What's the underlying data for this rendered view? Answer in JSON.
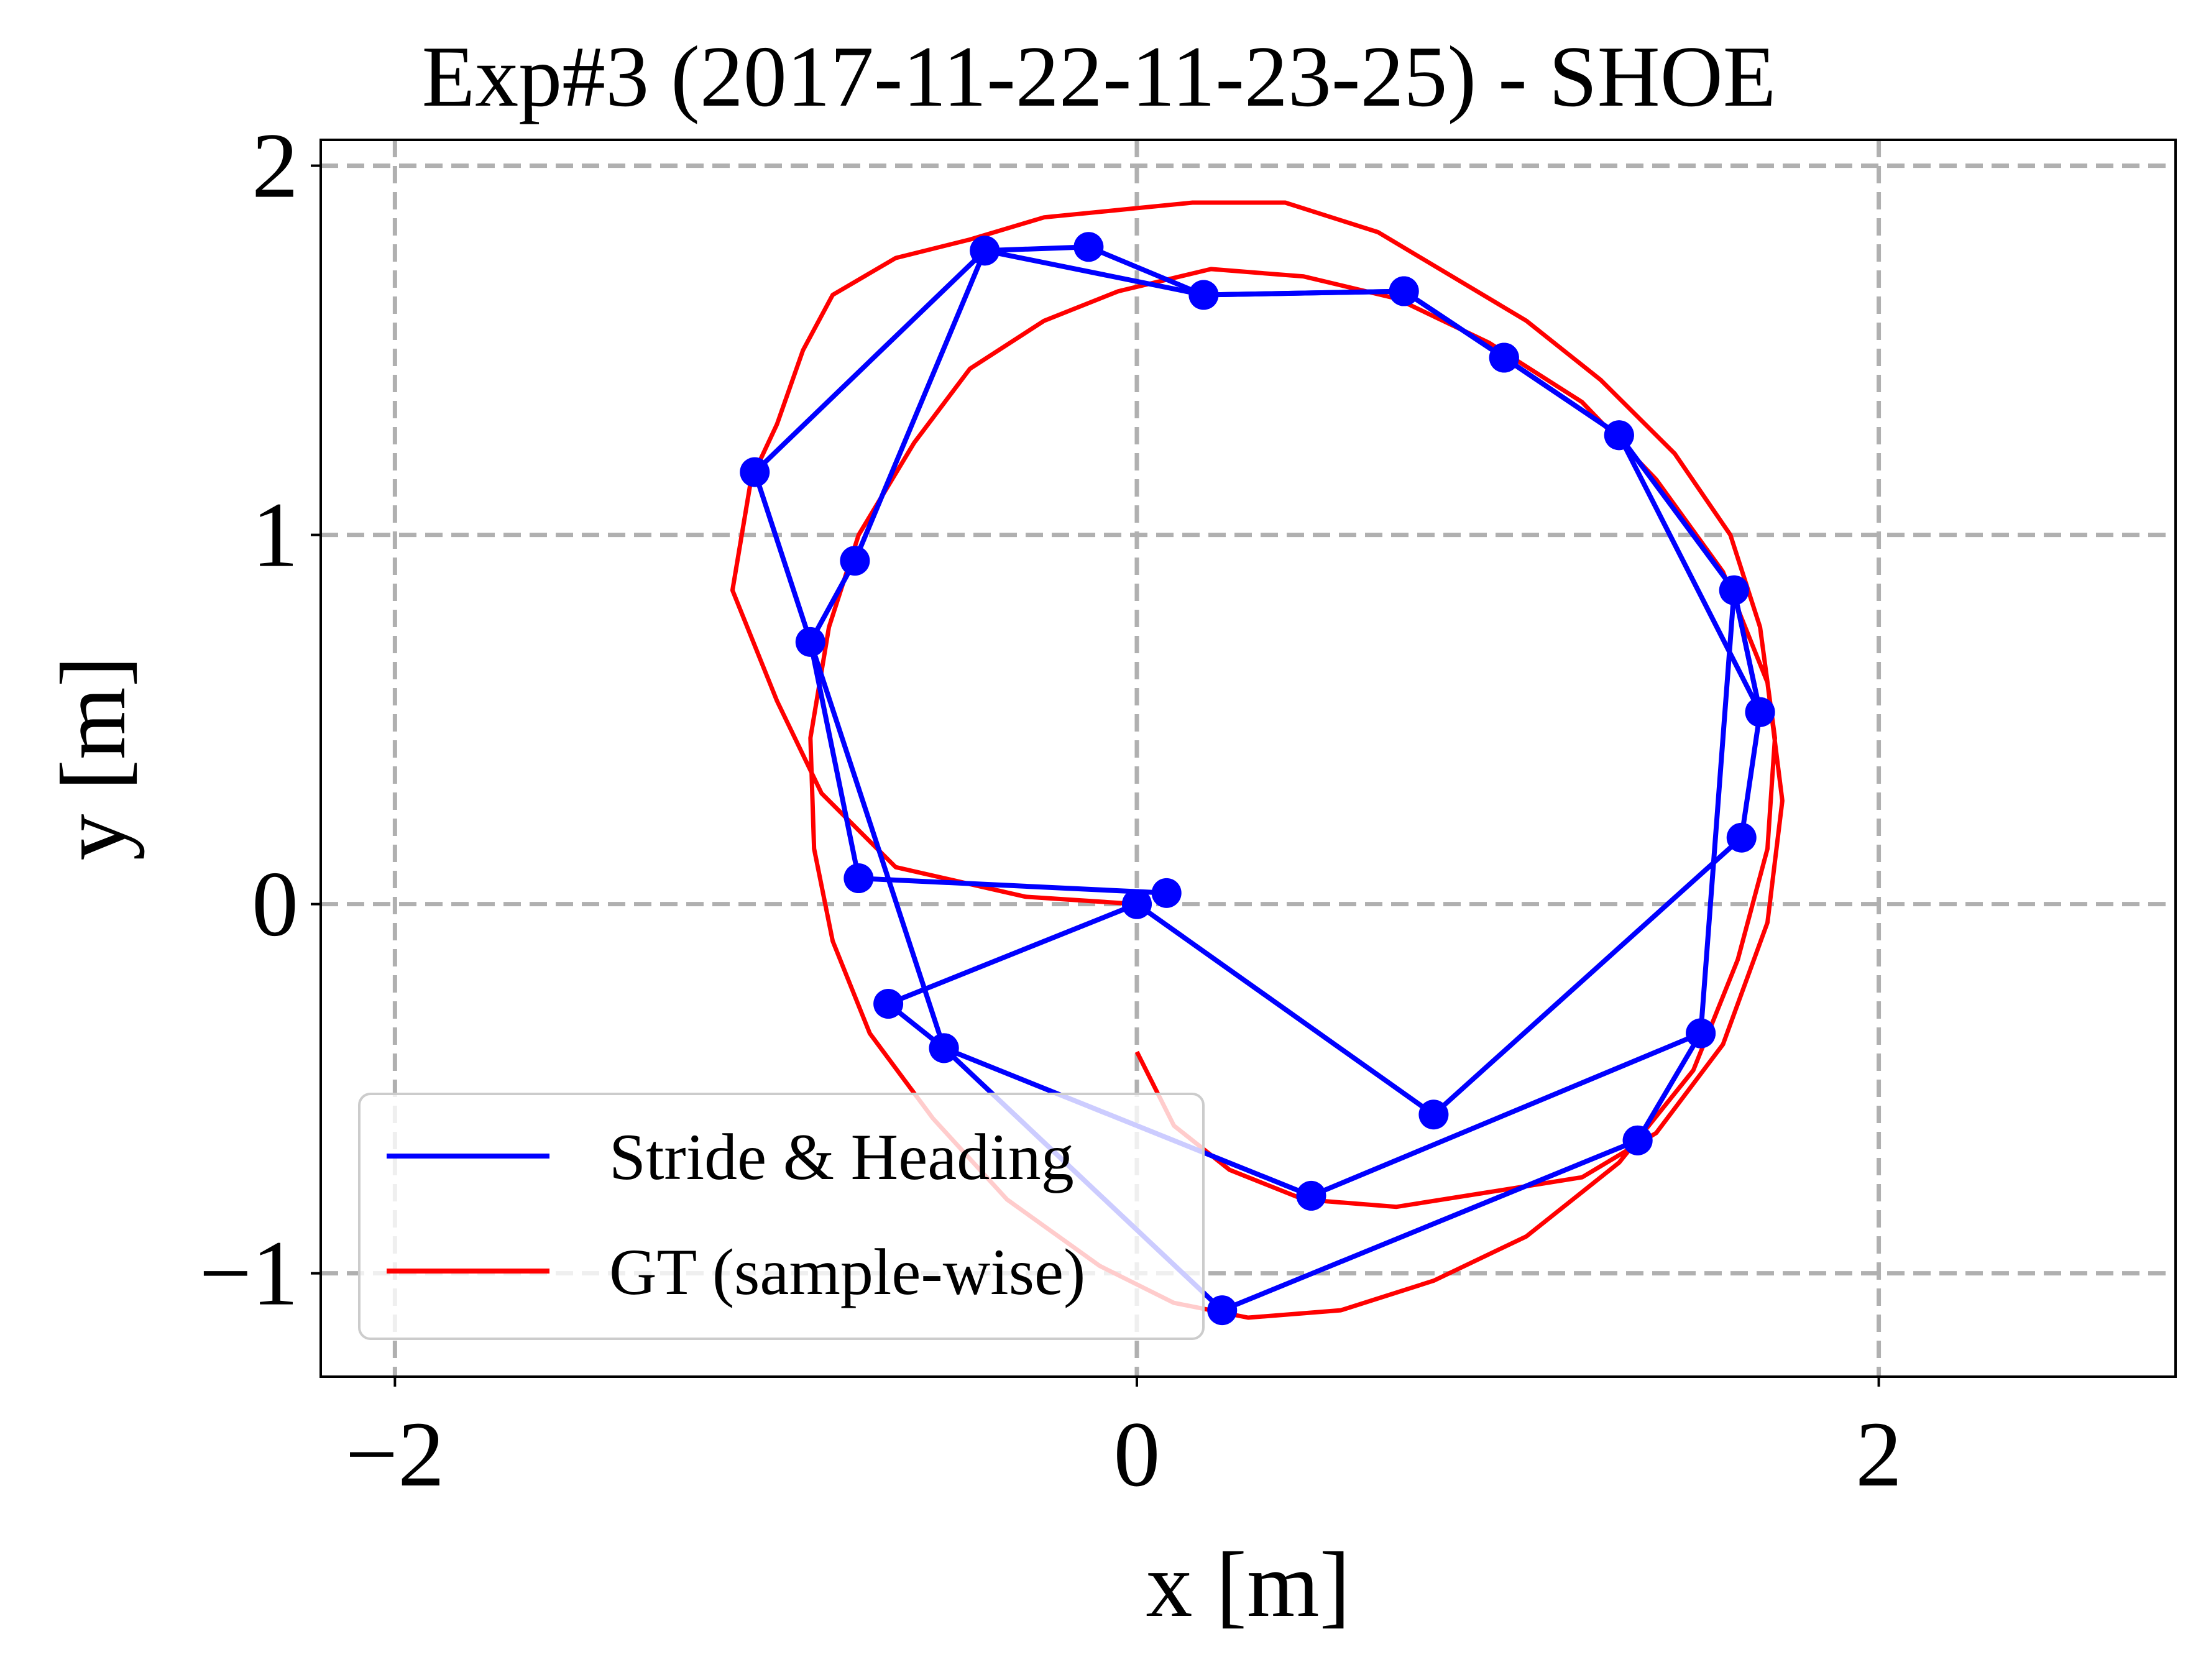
{
  "chart_data": {
    "type": "line",
    "title": "Exp#3 (2017-11-22-11-23-25) - SHOE",
    "xlabel": "x [m]",
    "ylabel": "y [m]",
    "xlim": [
      -2.2,
      2.8
    ],
    "ylim": [
      -1.28,
      2.07
    ],
    "x_ticks": [
      {
        "value": -2,
        "label": "−2"
      },
      {
        "value": 0,
        "label": "0"
      },
      {
        "value": 2,
        "label": "2"
      }
    ],
    "y_ticks": [
      {
        "value": -1,
        "label": "−1"
      },
      {
        "value": 0,
        "label": "0"
      },
      {
        "value": 1,
        "label": "1"
      },
      {
        "value": 2,
        "label": "2"
      }
    ],
    "grid": true,
    "legend_position": "lower-left",
    "series": [
      {
        "name": "Stride & Heading",
        "color": "#0000ff",
        "marker": "circle",
        "x": [
          0.08,
          -0.75,
          -0.88,
          -0.76,
          -0.41,
          -0.13,
          0.18,
          0.72,
          0.99,
          1.3,
          1.61,
          1.68,
          1.63,
          0.8,
          0.0
        ],
        "y": [
          0.03,
          0.07,
          0.71,
          0.93,
          1.77,
          1.78,
          1.65,
          1.66,
          1.48,
          1.27,
          0.85,
          0.52,
          0.18,
          -0.57,
          0.0
        ],
        "x2": [
          0.0,
          -0.67,
          -0.52,
          0.47,
          1.52,
          1.35,
          0.23,
          -0.52,
          -1.03,
          -0.41,
          0.18,
          0.72,
          0.99,
          1.3,
          1.68,
          1.61,
          1.52,
          1.35
        ],
        "y2": [
          0.0,
          -0.27,
          -0.39,
          -0.79,
          -0.35,
          -0.64,
          -1.1,
          -0.39,
          1.17,
          1.77,
          1.65,
          1.66,
          1.48,
          1.27,
          0.52,
          0.85,
          -0.35,
          -0.64
        ]
      },
      {
        "name": "GT (sample-wise)",
        "color": "#ff0000",
        "x": [
          0.0,
          -0.3,
          -0.65,
          -0.85,
          -0.97,
          -1.09,
          -1.04,
          -0.97,
          -0.9,
          -0.82,
          -0.65,
          -0.45,
          -0.25,
          -0.05,
          0.15,
          0.4,
          0.65,
          0.85,
          1.05,
          1.25,
          1.45,
          1.6,
          1.68,
          1.72,
          1.7,
          1.62,
          1.5,
          1.3,
          1.05,
          0.8,
          0.55,
          0.3,
          0.1,
          -0.1,
          -0.35,
          -0.55,
          -0.72,
          -0.82,
          -0.87,
          -0.88,
          -0.83,
          -0.75,
          -0.6,
          -0.45,
          -0.25,
          -0.05,
          0.2,
          0.45,
          0.7,
          0.95,
          1.2,
          1.4,
          1.58,
          1.7,
          1.74,
          1.7,
          1.58,
          1.4,
          1.2,
          0.95,
          0.7,
          0.45,
          0.25,
          0.1,
          0.0
        ],
        "y": [
          0.0,
          0.02,
          0.1,
          0.3,
          0.55,
          0.85,
          1.15,
          1.3,
          1.5,
          1.65,
          1.75,
          1.8,
          1.86,
          1.88,
          1.9,
          1.9,
          1.82,
          1.7,
          1.58,
          1.42,
          1.22,
          1.0,
          0.75,
          0.45,
          0.15,
          -0.15,
          -0.45,
          -0.7,
          -0.9,
          -1.02,
          -1.1,
          -1.12,
          -1.08,
          -0.98,
          -0.8,
          -0.58,
          -0.35,
          -0.1,
          0.15,
          0.45,
          0.75,
          1.0,
          1.25,
          1.45,
          1.58,
          1.66,
          1.72,
          1.7,
          1.64,
          1.52,
          1.36,
          1.15,
          0.9,
          0.6,
          0.28,
          -0.05,
          -0.38,
          -0.62,
          -0.74,
          -0.78,
          -0.82,
          -0.8,
          -0.72,
          -0.6,
          -0.4
        ]
      }
    ]
  }
}
